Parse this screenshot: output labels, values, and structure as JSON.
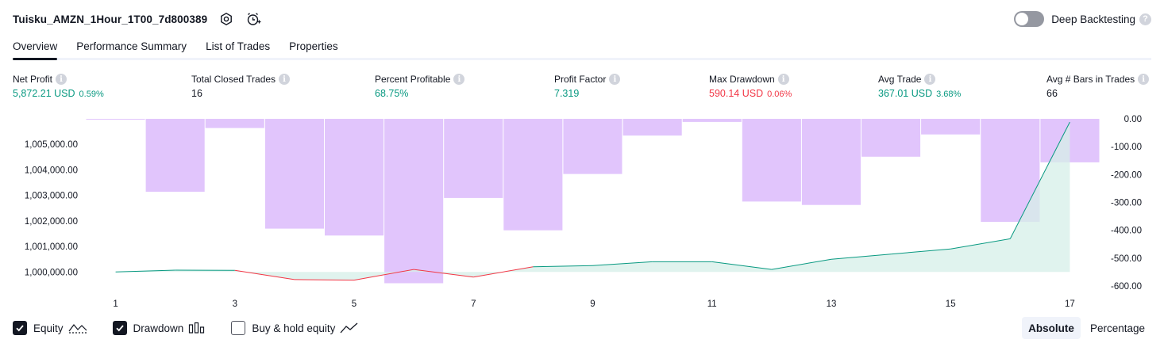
{
  "header": {
    "title": "Tuisku_AMZN_1Hour_1T00_7d800389",
    "settings_icon": "gear-hex-icon",
    "alert_icon": "add-alert-clock-icon",
    "deep_backtesting_label": "Deep Backtesting",
    "deep_backtesting_on": false,
    "help_glyph": "?"
  },
  "tabs": [
    {
      "label": "Overview",
      "active": true
    },
    {
      "label": "Performance Summary",
      "active": false
    },
    {
      "label": "List of Trades",
      "active": false
    },
    {
      "label": "Properties",
      "active": false
    }
  ],
  "info_glyph": "i",
  "metrics": [
    {
      "label": "Net Profit",
      "value": "5,872.21 USD",
      "pct": "0.59%",
      "tone": "pos"
    },
    {
      "label": "Total Closed Trades",
      "value": "16",
      "pct": "",
      "tone": "neu"
    },
    {
      "label": "Percent Profitable",
      "value": "68.75%",
      "pct": "",
      "tone": "pos"
    },
    {
      "label": "Profit Factor",
      "value": "7.319",
      "pct": "",
      "tone": "pos"
    },
    {
      "label": "Max Drawdown",
      "value": "590.14 USD",
      "pct": "0.06%",
      "tone": "neg"
    },
    {
      "label": "Avg Trade",
      "value": "367.01 USD",
      "pct": "3.68%",
      "tone": "pos"
    },
    {
      "label": "Avg # Bars in Trades",
      "value": "66",
      "pct": "",
      "tone": "neu"
    }
  ],
  "chart_data": {
    "type": "line+bar",
    "x": [
      1,
      2,
      3,
      4,
      5,
      6,
      7,
      8,
      9,
      10,
      11,
      12,
      13,
      14,
      15,
      16,
      17
    ],
    "x_tick_labels": [
      "1",
      "3",
      "5",
      "7",
      "9",
      "11",
      "13",
      "15",
      "17"
    ],
    "equity_axis": {
      "side": "left",
      "tick_labels": [
        "1,000,000.00",
        "1,001,000.00",
        "1,002,000.00",
        "1,003,000.00",
        "1,004,000.00",
        "1,005,000.00"
      ],
      "ticks": [
        1000000,
        1001000,
        1002000,
        1003000,
        1004000,
        1005000
      ],
      "range": [
        999450,
        1006000
      ]
    },
    "drawdown_axis": {
      "side": "right",
      "tick_labels": [
        "0.00",
        "-100.00",
        "-200.00",
        "-300.00",
        "-400.00",
        "-500.00",
        "-600.00"
      ],
      "ticks": [
        0,
        -100,
        -200,
        -300,
        -400,
        -500,
        -600
      ],
      "range": [
        -600,
        0
      ]
    },
    "series": [
      {
        "name": "Equity",
        "kind": "line",
        "values": [
          1000000,
          1000070,
          1000060,
          999700,
          999680,
          1000100,
          999800,
          1000200,
          1000250,
          1000400,
          1000400,
          1000100,
          1000500,
          1000700,
          1000900,
          1001300,
          1005872
        ]
      },
      {
        "name": "Drawdown",
        "kind": "bar",
        "values": [
          -2,
          -262,
          -33,
          -394,
          -419,
          -590,
          -284,
          -400,
          -198,
          -60,
          -11,
          -297,
          -309,
          -136,
          -56,
          -370,
          -156
        ]
      }
    ],
    "colors": {
      "equity_up": "#089981",
      "equity_down": "#f23645",
      "equity_fill": "#d6efe8",
      "drawdown_bar": "#e1c5fc",
      "drawdown_bar_edge": "#d6b3fa"
    }
  },
  "legend": [
    {
      "label": "Equity",
      "checked": true,
      "icon": "equity-line-icon"
    },
    {
      "label": "Drawdown",
      "checked": true,
      "icon": "drawdown-bars-icon"
    },
    {
      "label": "Buy & hold equity",
      "checked": false,
      "icon": "buy-hold-line-icon"
    }
  ],
  "mode": {
    "absolute_label": "Absolute",
    "percentage_label": "Percentage",
    "selected": "Absolute"
  }
}
